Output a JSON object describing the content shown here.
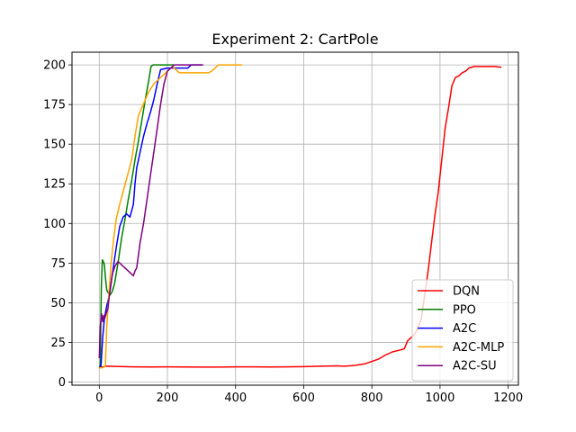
{
  "chart_data": {
    "type": "line",
    "title": "Experiment 2: CartPole",
    "xlabel": "",
    "ylabel": "",
    "xlim": [
      -80,
      1230
    ],
    "ylim": [
      -2,
      208
    ],
    "xticks": [
      0,
      200,
      400,
      600,
      800,
      1000,
      1200
    ],
    "yticks": [
      0,
      25,
      50,
      75,
      100,
      125,
      150,
      175,
      200
    ],
    "grid": true,
    "legend_position": "lower-right",
    "series": [
      {
        "name": "DQN",
        "color": "#ff0000",
        "points": [
          [
            0,
            9
          ],
          [
            20,
            10
          ],
          [
            60,
            9.8
          ],
          [
            100,
            9.6
          ],
          [
            150,
            9.5
          ],
          [
            200,
            9.6
          ],
          [
            250,
            9.5
          ],
          [
            300,
            9.4
          ],
          [
            350,
            9.4
          ],
          [
            400,
            9.6
          ],
          [
            450,
            9.6
          ],
          [
            500,
            9.5
          ],
          [
            550,
            9.6
          ],
          [
            600,
            9.7
          ],
          [
            650,
            10
          ],
          [
            700,
            10.2
          ],
          [
            720,
            10
          ],
          [
            750,
            10.5
          ],
          [
            780,
            11.5
          ],
          [
            800,
            13
          ],
          [
            820,
            14.5
          ],
          [
            840,
            17
          ],
          [
            860,
            19
          ],
          [
            880,
            20
          ],
          [
            895,
            21
          ],
          [
            905,
            26
          ],
          [
            915,
            28
          ],
          [
            925,
            30
          ],
          [
            935,
            34
          ],
          [
            945,
            40
          ],
          [
            955,
            55
          ],
          [
            965,
            70
          ],
          [
            975,
            88
          ],
          [
            985,
            105
          ],
          [
            995,
            120
          ],
          [
            1005,
            140
          ],
          [
            1015,
            160
          ],
          [
            1025,
            173
          ],
          [
            1035,
            187
          ],
          [
            1045,
            192
          ],
          [
            1055,
            193
          ],
          [
            1065,
            195
          ],
          [
            1075,
            196
          ],
          [
            1085,
            198
          ],
          [
            1100,
            199
          ],
          [
            1120,
            199
          ],
          [
            1140,
            199
          ],
          [
            1160,
            199
          ],
          [
            1180,
            198.5
          ]
        ]
      },
      {
        "name": "PPO",
        "color": "#008000",
        "points": [
          [
            0,
            9
          ],
          [
            3,
            10
          ],
          [
            6,
            60
          ],
          [
            9,
            77
          ],
          [
            12,
            76
          ],
          [
            15,
            74
          ],
          [
            18,
            66
          ],
          [
            22,
            58
          ],
          [
            27,
            56
          ],
          [
            32,
            55
          ],
          [
            38,
            57
          ],
          [
            45,
            62
          ],
          [
            55,
            75
          ],
          [
            65,
            90
          ],
          [
            75,
            102
          ],
          [
            85,
            115
          ],
          [
            95,
            127
          ],
          [
            105,
            140
          ],
          [
            115,
            152
          ],
          [
            125,
            165
          ],
          [
            135,
            178
          ],
          [
            145,
            190
          ],
          [
            152,
            199
          ],
          [
            158,
            200
          ],
          [
            175,
            200
          ],
          [
            200,
            200
          ],
          [
            220,
            200
          ]
        ]
      },
      {
        "name": "A2C",
        "color": "#0000ff",
        "points": [
          [
            0,
            10
          ],
          [
            5,
            10
          ],
          [
            10,
            28
          ],
          [
            15,
            40
          ],
          [
            22,
            48
          ],
          [
            30,
            55
          ],
          [
            40,
            70
          ],
          [
            50,
            85
          ],
          [
            60,
            98
          ],
          [
            70,
            104
          ],
          [
            80,
            106
          ],
          [
            90,
            104
          ],
          [
            100,
            112
          ],
          [
            105,
            125
          ],
          [
            110,
            135
          ],
          [
            120,
            145
          ],
          [
            130,
            155
          ],
          [
            140,
            163
          ],
          [
            150,
            170
          ],
          [
            160,
            178
          ],
          [
            170,
            188
          ],
          [
            180,
            197
          ],
          [
            200,
            198
          ],
          [
            230,
            198
          ],
          [
            260,
            198
          ],
          [
            270,
            200
          ],
          [
            300,
            200
          ]
        ]
      },
      {
        "name": "A2C-MLP",
        "color": "#ffa500",
        "points": [
          [
            0,
            9
          ],
          [
            10,
            9
          ],
          [
            18,
            10
          ],
          [
            22,
            35
          ],
          [
            28,
            55
          ],
          [
            35,
            75
          ],
          [
            42,
            90
          ],
          [
            50,
            103
          ],
          [
            60,
            112
          ],
          [
            70,
            120
          ],
          [
            80,
            128
          ],
          [
            95,
            140
          ],
          [
            105,
            155
          ],
          [
            115,
            168
          ],
          [
            125,
            173
          ],
          [
            135,
            178
          ],
          [
            145,
            183
          ],
          [
            160,
            188
          ],
          [
            175,
            191
          ],
          [
            190,
            194
          ],
          [
            205,
            197
          ],
          [
            215,
            199
          ],
          [
            225,
            197
          ],
          [
            235,
            195
          ],
          [
            250,
            195
          ],
          [
            275,
            195
          ],
          [
            300,
            195
          ],
          [
            320,
            195
          ],
          [
            330,
            196
          ],
          [
            340,
            198
          ],
          [
            350,
            200
          ],
          [
            380,
            200
          ],
          [
            420,
            200
          ]
        ]
      },
      {
        "name": "A2C-SU",
        "color": "#800080",
        "points": [
          [
            0,
            15
          ],
          [
            3,
            35
          ],
          [
            7,
            43
          ],
          [
            10,
            38
          ],
          [
            13,
            42
          ],
          [
            16,
            40
          ],
          [
            20,
            43
          ],
          [
            25,
            46
          ],
          [
            30,
            55
          ],
          [
            38,
            68
          ],
          [
            46,
            73
          ],
          [
            55,
            76
          ],
          [
            65,
            74
          ],
          [
            75,
            72
          ],
          [
            85,
            70
          ],
          [
            95,
            68
          ],
          [
            100,
            67
          ],
          [
            105,
            70
          ],
          [
            110,
            72
          ],
          [
            120,
            88
          ],
          [
            130,
            100
          ],
          [
            140,
            115
          ],
          [
            150,
            130
          ],
          [
            160,
            145
          ],
          [
            170,
            160
          ],
          [
            180,
            175
          ],
          [
            190,
            188
          ],
          [
            200,
            196
          ],
          [
            210,
            198
          ],
          [
            220,
            200
          ],
          [
            250,
            200
          ],
          [
            280,
            200
          ],
          [
            305,
            200
          ]
        ]
      }
    ]
  }
}
